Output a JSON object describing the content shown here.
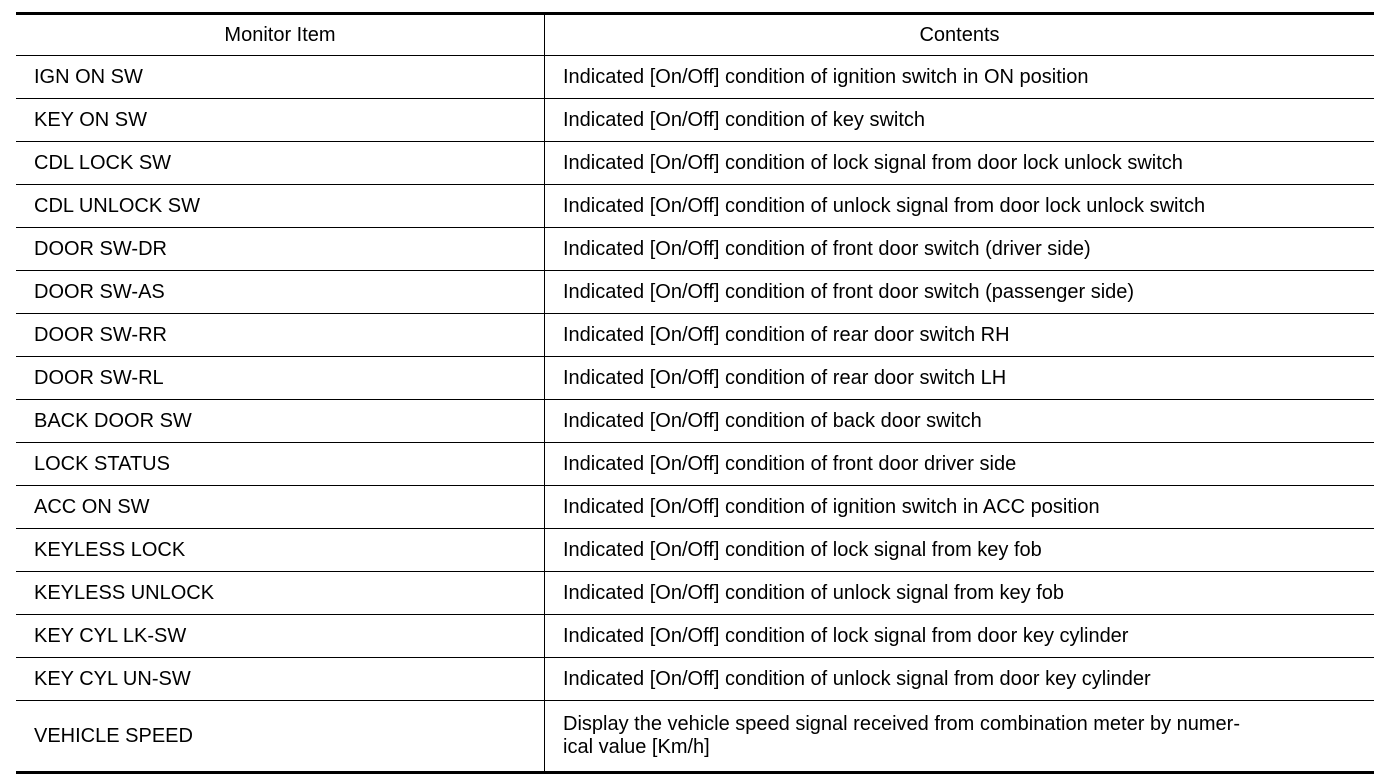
{
  "table": {
    "headers": [
      "Monitor Item",
      "Contents"
    ],
    "rows": [
      {
        "item": "IGN ON SW",
        "contents": "Indicated [On/Off] condition of ignition switch in ON position"
      },
      {
        "item": "KEY ON SW",
        "contents": "Indicated [On/Off] condition of key switch"
      },
      {
        "item": "CDL LOCK SW",
        "contents": "Indicated [On/Off] condition of lock signal from door lock unlock switch"
      },
      {
        "item": "CDL UNLOCK SW",
        "contents": "Indicated [On/Off] condition of unlock signal from door lock unlock switch"
      },
      {
        "item": "DOOR SW-DR",
        "contents": "Indicated [On/Off] condition of front door switch (driver side)"
      },
      {
        "item": "DOOR SW-AS",
        "contents": "Indicated [On/Off] condition of front door switch (passenger side)"
      },
      {
        "item": "DOOR SW-RR",
        "contents": "Indicated [On/Off] condition of rear door switch RH"
      },
      {
        "item": "DOOR SW-RL",
        "contents": "Indicated [On/Off] condition of rear door switch LH"
      },
      {
        "item": "BACK DOOR SW",
        "contents": "Indicated [On/Off] condition of back door switch"
      },
      {
        "item": "LOCK STATUS",
        "contents": "Indicated [On/Off] condition of front door driver side"
      },
      {
        "item": "ACC ON SW",
        "contents": "Indicated [On/Off] condition of ignition switch in ACC position"
      },
      {
        "item": "KEYLESS LOCK",
        "contents": "Indicated [On/Off] condition of lock signal from key fob"
      },
      {
        "item": "KEYLESS UNLOCK",
        "contents": "Indicated [On/Off] condition of unlock signal from key fob"
      },
      {
        "item": "KEY CYL LK-SW",
        "contents": "Indicated [On/Off] condition of lock signal from door key cylinder"
      },
      {
        "item": "KEY CYL UN-SW",
        "contents": "Indicated [On/Off] condition of unlock signal from door key cylinder"
      },
      {
        "item": "VEHICLE SPEED",
        "contents_lines": [
          "Display the vehicle speed signal received from combination meter by numer-",
          "ical value [Km/h]"
        ]
      }
    ]
  }
}
